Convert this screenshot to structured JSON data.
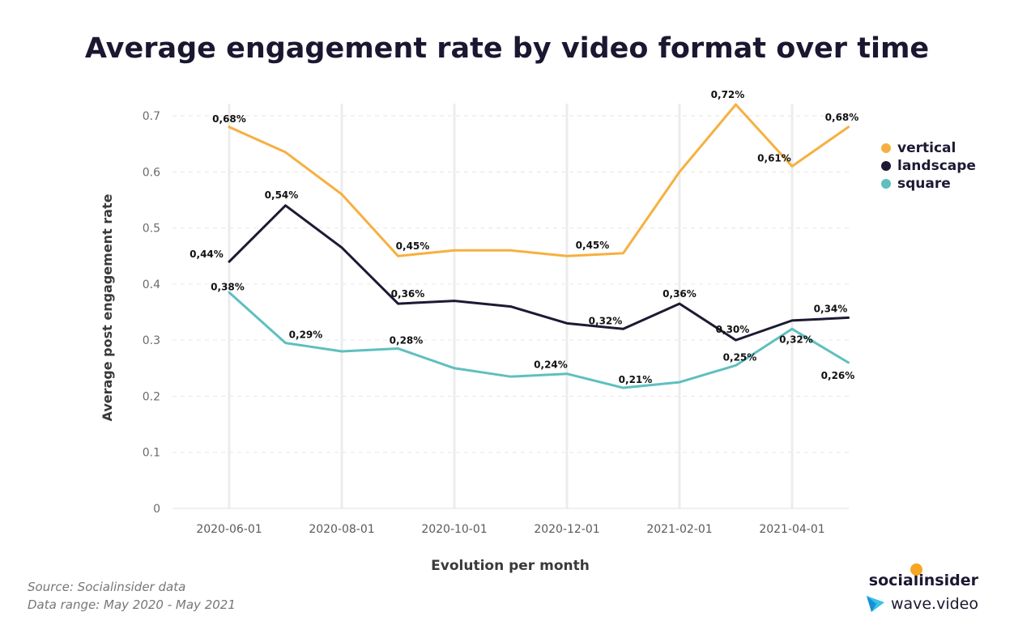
{
  "title": "Average engagement rate by video format over time",
  "legend": [
    {
      "label": "vertical",
      "color": "#f6b040"
    },
    {
      "label": "landscape",
      "color": "#1c1a33"
    },
    {
      "label": "square",
      "color": "#5fbfbf"
    }
  ],
  "footer": {
    "source": "Source: Socialinsider data",
    "range": "Data range: May 2020 - May 2021"
  },
  "branding": {
    "brand1": "socialinsider",
    "brand2": "wave.video",
    "brand2_icon": "play-icon"
  },
  "chart_data": {
    "type": "line",
    "xlabel": "Evolution per month",
    "ylabel": "Average post engagement rate",
    "ylim": [
      0,
      0.7
    ],
    "yticks": [
      "0",
      "0.1",
      "0.2",
      "0.3",
      "0.4",
      "0.5",
      "0.6",
      "0.7"
    ],
    "x": [
      "2020-06-01",
      "2020-07-01",
      "2020-08-01",
      "2020-09-01",
      "2020-10-01",
      "2020-11-01",
      "2020-12-01",
      "2021-01-01",
      "2021-02-01",
      "2021-03-01",
      "2021-04-01",
      "2021-05-01"
    ],
    "xticks": [
      "2020-06-01",
      "2020-08-01",
      "2020-10-01",
      "2020-12-01",
      "2021-02-01",
      "2021-04-01"
    ],
    "grid": true,
    "legend_position": "right",
    "series": [
      {
        "name": "vertical",
        "color": "#f6b040",
        "values": [
          0.68,
          0.635,
          0.56,
          0.45,
          0.46,
          0.46,
          0.45,
          0.455,
          0.6,
          0.72,
          0.61,
          0.68
        ],
        "labels": [
          "0,68%",
          "",
          "",
          "0,45%",
          "",
          "",
          "",
          "0,45%",
          "",
          "0,72%",
          "0,61%",
          "0,68%"
        ]
      },
      {
        "name": "landscape",
        "color": "#1c1a33",
        "values": [
          0.44,
          0.54,
          0.465,
          0.365,
          0.37,
          0.36,
          0.33,
          0.32,
          0.365,
          0.3,
          0.335,
          0.34
        ],
        "labels": [
          "0,44%",
          "0,54%",
          "",
          "0,36%",
          "",
          "",
          "",
          "0,32%",
          "0,36%",
          "0,30%",
          "",
          "0,34%"
        ]
      },
      {
        "name": "square",
        "color": "#5fbfbf",
        "values": [
          0.385,
          0.295,
          0.28,
          0.285,
          0.25,
          0.235,
          0.24,
          0.215,
          0.225,
          0.255,
          0.32,
          0.26
        ],
        "labels": [
          "0,38%",
          "0,29%",
          "",
          "0,28%",
          "",
          "",
          "0,24%",
          "0,21%",
          "",
          "0,25%",
          "0,32%",
          "0,26%"
        ]
      }
    ]
  }
}
